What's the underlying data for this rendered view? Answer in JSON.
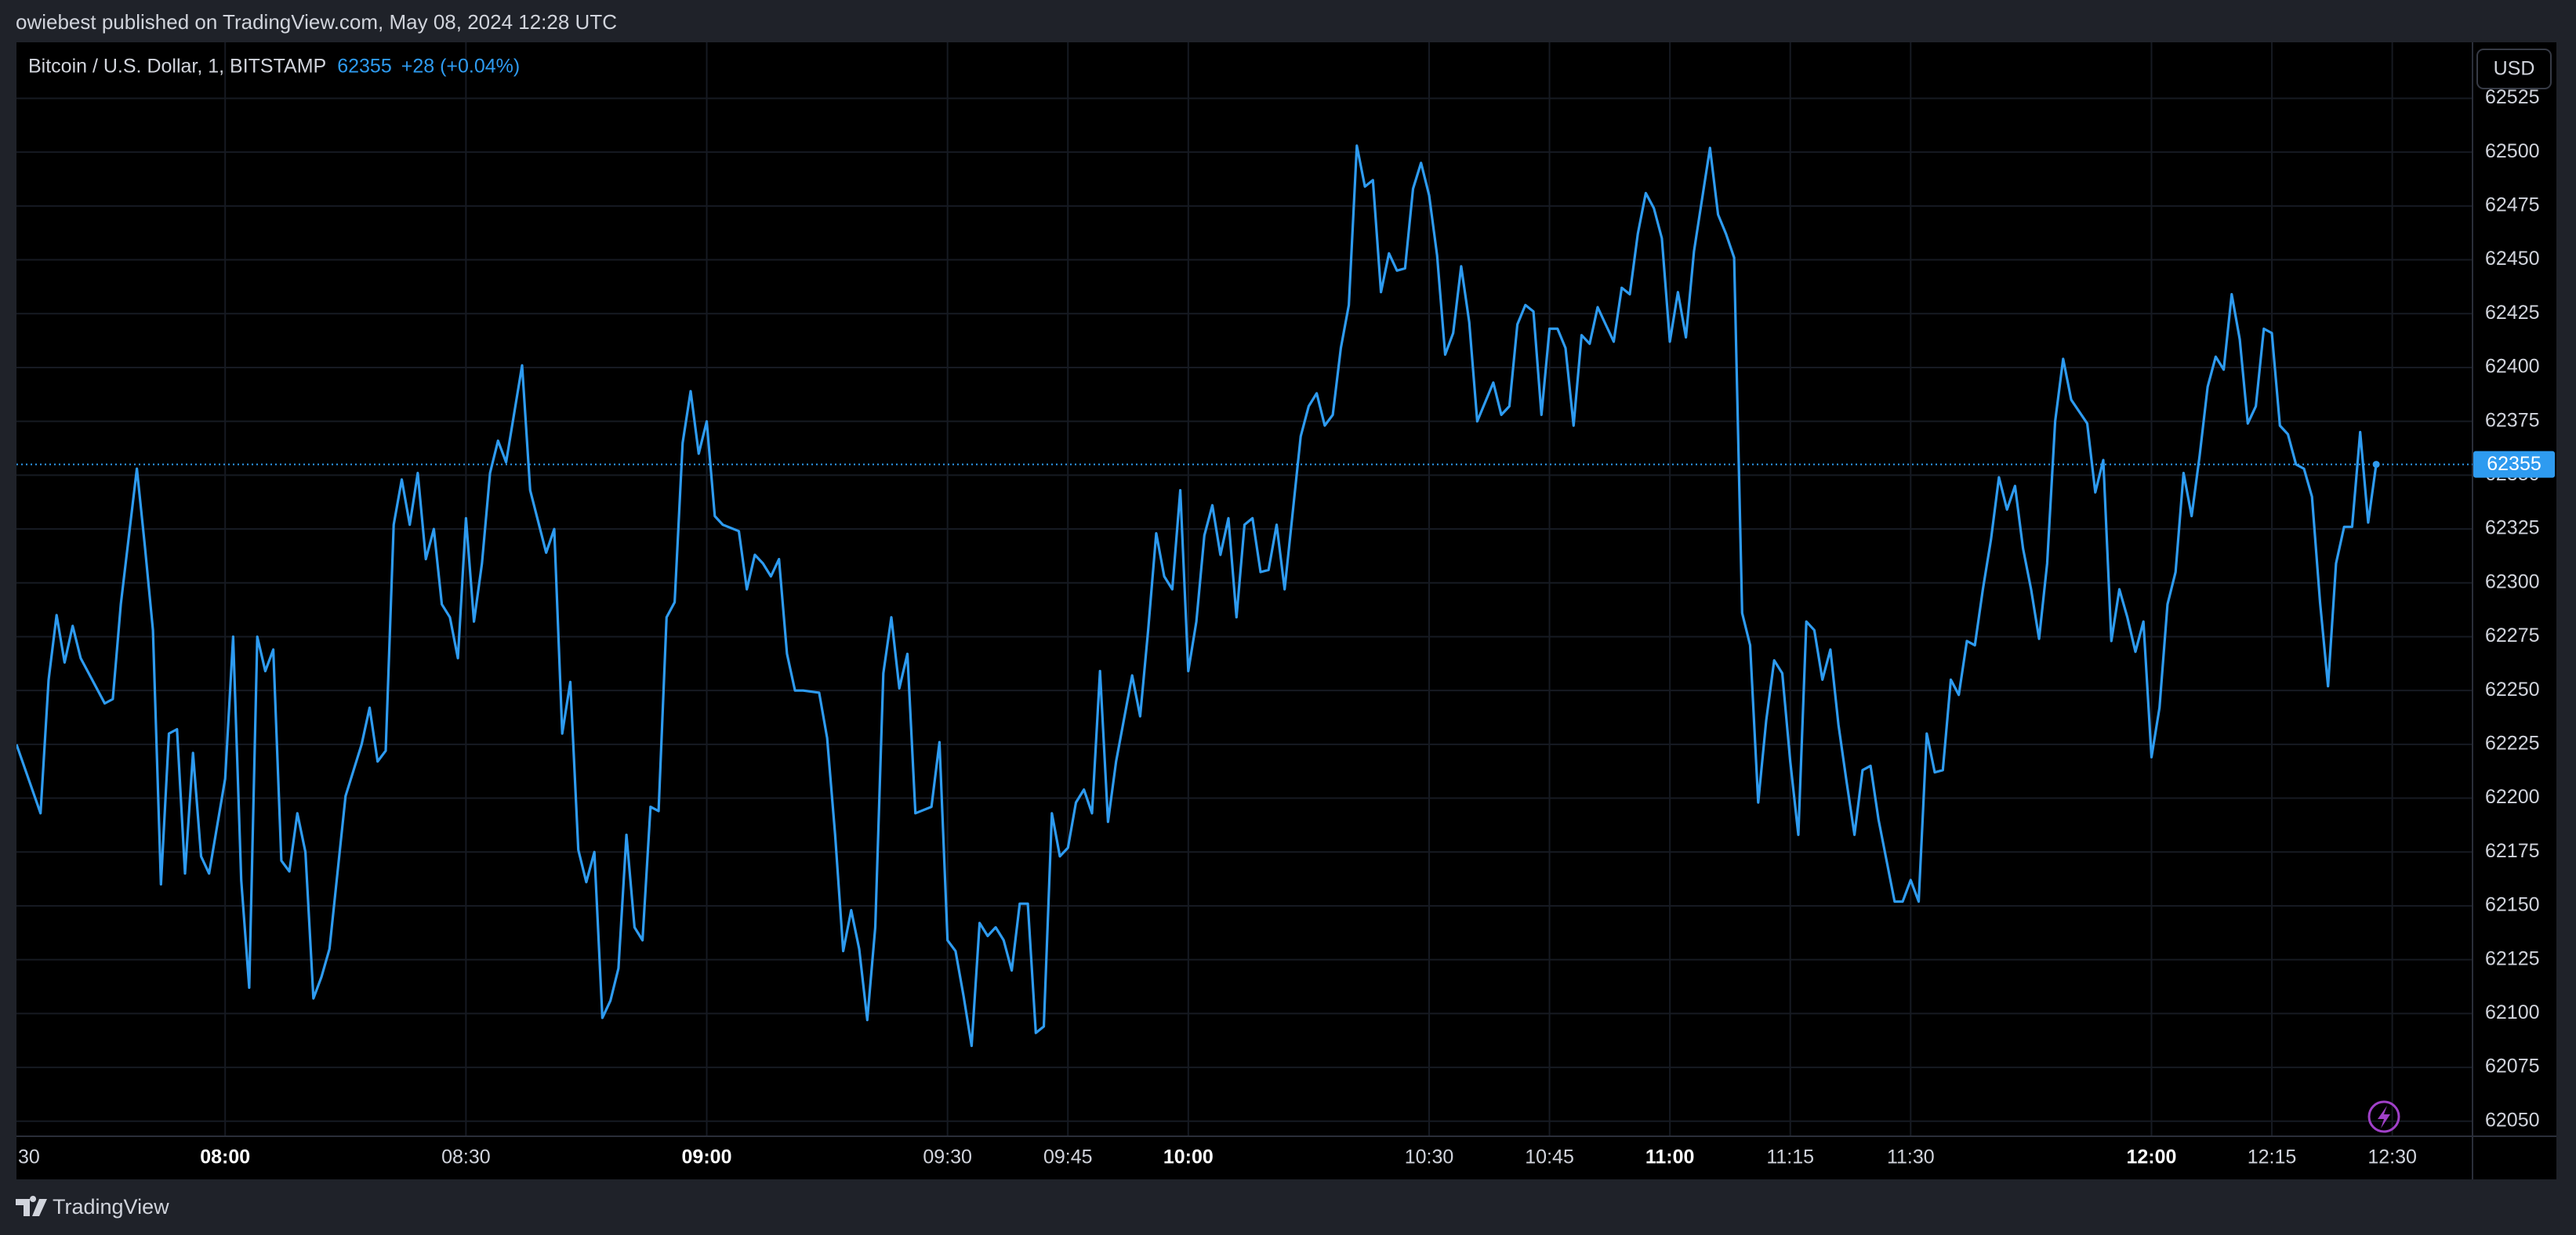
{
  "header": {
    "text": "owiebest published on TradingView.com, May 08, 2024 12:28 UTC"
  },
  "chart_data": {
    "type": "line",
    "title": "Bitcoin / U.S. Dollar, 1, BITSTAMP",
    "last_price": 62355,
    "change": "+28 (+0.04%)",
    "currency": "USD",
    "color": "#2e9bf0",
    "grid": true,
    "x": [
      "07:34",
      "07:37",
      "07:38",
      "07:39",
      "07:40",
      "07:41",
      "07:42",
      "07:45",
      "07:46",
      "07:47",
      "07:49",
      "07:50",
      "07:51",
      "07:52",
      "07:53",
      "07:54",
      "07:55",
      "07:56",
      "07:57",
      "07:58",
      "08:00",
      "08:01",
      "08:02",
      "08:03",
      "08:04",
      "08:05",
      "08:06",
      "08:07",
      "08:08",
      "08:09",
      "08:10",
      "08:11",
      "08:12",
      "08:13",
      "08:15",
      "08:17",
      "08:18",
      "08:19",
      "08:20",
      "08:21",
      "08:22",
      "08:23",
      "08:24",
      "08:25",
      "08:26",
      "08:27",
      "08:28",
      "08:29",
      "08:30",
      "08:31",
      "08:32",
      "08:33",
      "08:34",
      "08:35",
      "08:37",
      "08:38",
      "08:40",
      "08:41",
      "08:42",
      "08:43",
      "08:44",
      "08:45",
      "08:46",
      "08:47",
      "08:48",
      "08:49",
      "08:50",
      "08:51",
      "08:52",
      "08:53",
      "08:54",
      "08:55",
      "08:56",
      "08:57",
      "08:58",
      "08:59",
      "09:00",
      "09:01",
      "09:02",
      "09:04",
      "09:05",
      "09:06",
      "09:07",
      "09:08",
      "09:09",
      "09:10",
      "09:11",
      "09:12",
      "09:14",
      "09:15",
      "09:16",
      "09:17",
      "09:18",
      "09:19",
      "09:20",
      "09:21",
      "09:22",
      "09:23",
      "09:24",
      "09:25",
      "09:26",
      "09:28",
      "09:29",
      "09:30",
      "09:31",
      "09:32",
      "09:33",
      "09:34",
      "09:35",
      "09:36",
      "09:37",
      "09:38",
      "09:39",
      "09:40",
      "09:41",
      "09:42",
      "09:43",
      "09:44",
      "09:45",
      "09:46",
      "09:47",
      "09:48",
      "09:49",
      "09:50",
      "09:51",
      "09:53",
      "09:54",
      "09:55",
      "09:56",
      "09:57",
      "09:58",
      "09:59",
      "10:00",
      "10:01",
      "10:02",
      "10:03",
      "10:04",
      "10:05",
      "10:06",
      "10:07",
      "10:08",
      "10:09",
      "10:10",
      "10:11",
      "10:12",
      "10:14",
      "10:15",
      "10:16",
      "10:17",
      "10:18",
      "10:19",
      "10:20",
      "10:21",
      "10:22",
      "10:23",
      "10:24",
      "10:25",
      "10:26",
      "10:27",
      "10:28",
      "10:29",
      "10:30",
      "10:31",
      "10:32",
      "10:33",
      "10:34",
      "10:35",
      "10:36",
      "10:38",
      "10:39",
      "10:40",
      "10:41",
      "10:42",
      "10:43",
      "10:44",
      "10:45",
      "10:46",
      "10:47",
      "10:48",
      "10:49",
      "10:50",
      "10:51",
      "10:52",
      "10:53",
      "10:54",
      "10:55",
      "10:56",
      "10:57",
      "10:58",
      "10:59",
      "11:00",
      "11:01",
      "11:02",
      "11:03",
      "11:05",
      "11:06",
      "11:07",
      "11:08",
      "11:09",
      "11:10",
      "11:11",
      "11:12",
      "11:13",
      "11:14",
      "11:15",
      "11:16",
      "11:17",
      "11:18",
      "11:19",
      "11:20",
      "11:21",
      "11:22",
      "11:23",
      "11:24",
      "11:25",
      "11:26",
      "11:28",
      "11:29",
      "11:30",
      "11:31",
      "11:32",
      "11:33",
      "11:34",
      "11:35",
      "11:36",
      "11:37",
      "11:38",
      "11:39",
      "11:40",
      "11:41",
      "11:42",
      "11:43",
      "11:44",
      "11:45",
      "11:46",
      "11:47",
      "11:48",
      "11:49",
      "11:50",
      "11:52",
      "11:53",
      "11:54",
      "11:55",
      "11:56",
      "11:57",
      "11:58",
      "11:59",
      "12:00",
      "12:01",
      "12:02",
      "12:03",
      "12:04",
      "12:05",
      "12:06",
      "12:07",
      "12:08",
      "12:09",
      "12:10",
      "12:11",
      "12:12",
      "12:13",
      "12:14",
      "12:15",
      "12:16",
      "12:17",
      "12:18",
      "12:19",
      "12:20",
      "12:21",
      "12:22",
      "12:23",
      "12:24",
      "12:25",
      "12:26",
      "12:27",
      "12:28"
    ],
    "values": [
      62225,
      62193,
      62255,
      62285,
      62263,
      62280,
      62265,
      62244,
      62246,
      62290,
      62353,
      62317,
      62278,
      62160,
      62230,
      62232,
      62165,
      62221,
      62173,
      62165,
      62209,
      62275,
      62162,
      62112,
      62275,
      62259,
      62269,
      62171,
      62166,
      62193,
      62175,
      62107,
      62117,
      62130,
      62201,
      62225,
      62242,
      62217,
      62222,
      62327,
      62348,
      62327,
      62351,
      62311,
      62325,
      62290,
      62284,
      62265,
      62330,
      62282,
      62309,
      62351,
      62366,
      62356,
      62401,
      62343,
      62314,
      62325,
      62230,
      62254,
      62176,
      62161,
      62175,
      62098,
      62106,
      62121,
      62183,
      62140,
      62134,
      62196,
      62194,
      62284,
      62291,
      62365,
      62389,
      62360,
      62375,
      62331,
      62327,
      62324,
      62297,
      62313,
      62309,
      62303,
      62311,
      62267,
      62250,
      62250,
      62249,
      62228,
      62183,
      62129,
      62148,
      62130,
      62097,
      62140,
      62258,
      62284,
      62251,
      62267,
      62193,
      62196,
      62226,
      62134,
      62129,
      62108,
      62085,
      62142,
      62136,
      62140,
      62134,
      62120,
      62151,
      62151,
      62091,
      62094,
      62193,
      62173,
      62177,
      62198,
      62204,
      62193,
      62259,
      62189,
      62217,
      62257,
      62238,
      62278,
      62323,
      62303,
      62297,
      62343,
      62259,
      62282,
      62322,
      62336,
      62313,
      62330,
      62284,
      62327,
      62330,
      62305,
      62306,
      62327,
      62297,
      62368,
      62382,
      62388,
      62373,
      62378,
      62409,
      62429,
      62503,
      62484,
      62487,
      62435,
      62453,
      62445,
      62446,
      62483,
      62495,
      62480,
      62452,
      62406,
      62416,
      62447,
      62421,
      62375,
      62393,
      62378,
      62382,
      62420,
      62429,
      62426,
      62378,
      62418,
      62418,
      62409,
      62373,
      62415,
      62411,
      62428,
      62420,
      62412,
      62437,
      62434,
      62462,
      62481,
      62474,
      62460,
      62412,
      62435,
      62414,
      62454,
      62502,
      62471,
      62462,
      62451,
      62286,
      62271,
      62198,
      62236,
      62264,
      62258,
      62217,
      62183,
      62282,
      62278,
      62255,
      62269,
      62234,
      62208,
      62183,
      62213,
      62215,
      62190,
      62152,
      62152,
      62162,
      62152,
      62230,
      62212,
      62213,
      62255,
      62248,
      62273,
      62271,
      62297,
      62320,
      62349,
      62334,
      62345,
      62316,
      62297,
      62274,
      62309,
      62375,
      62404,
      62385,
      62374,
      62342,
      62357,
      62273,
      62297,
      62284,
      62268,
      62282,
      62219,
      62242,
      62290,
      62305,
      62351,
      62331,
      62359,
      62391,
      62405,
      62399,
      62434,
      62413,
      62374,
      62382,
      62418,
      62416,
      62373,
      62369,
      62355,
      62353,
      62340,
      62291,
      62252,
      62309,
      62326,
      62326,
      62370,
      62328,
      62355
    ],
    "xlim": [
      "07:34",
      "12:40"
    ],
    "xticks": [
      {
        "value": "07:30",
        "label": "30"
      },
      "08:00",
      "08:30",
      "09:00",
      "09:30",
      "09:45",
      "10:00",
      "10:30",
      "10:45",
      "11:00",
      "11:15",
      "11:30",
      "12:00",
      "12:15",
      "12:30"
    ],
    "ylim": [
      62043,
      62551
    ],
    "yticks": [
      62050,
      62075,
      62100,
      62125,
      62150,
      62175,
      62200,
      62225,
      62250,
      62275,
      62300,
      62325,
      62350,
      62375,
      62400,
      62425,
      62450,
      62475,
      62500,
      62525
    ]
  },
  "footer": {
    "brand": "TradingView"
  }
}
